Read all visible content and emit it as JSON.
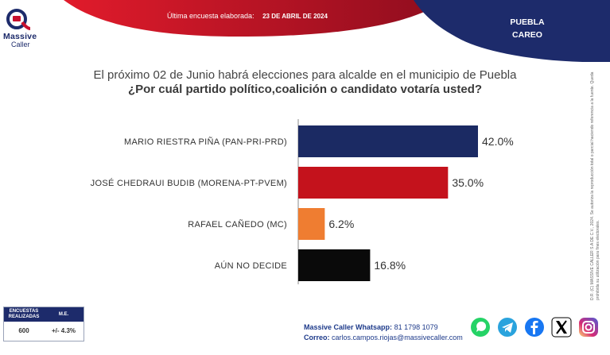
{
  "header": {
    "brand": "Massive",
    "brand_sub": "Caller",
    "survey_label": "Última encuesta elaborada:",
    "survey_date": "23 DE ABRIL DE 2024",
    "region_line1": "PUEBLA",
    "region_line2": "CAREO"
  },
  "question": {
    "intro": "El próximo 02 de Junio habrá elecciones para alcalde en el municipio de Puebla",
    "main": "¿Por cuál partido político,coalición o candidato votaría usted?"
  },
  "chart_data": {
    "type": "bar",
    "orientation": "horizontal",
    "categories": [
      "MARIO RIESTRA PIÑA (PAN-PRI-PRD)",
      "JOSÉ CHEDRAUI BUDIB (MORENA-PT-PVEM)",
      "RAFAEL CAÑEDO (MC)",
      "AÚN NO DECIDE"
    ],
    "values": [
      42.0,
      35.0,
      6.2,
      16.8
    ],
    "value_labels": [
      "42.0%",
      "35.0%",
      "6.2%",
      "16.8%"
    ],
    "colors": [
      "#1b2a63",
      "#c4121c",
      "#ef7d31",
      "#0a0a0a"
    ],
    "title": "",
    "xlabel": "",
    "ylabel": "",
    "xlim": [
      0,
      42
    ],
    "grid": false
  },
  "methodology": {
    "col1_header": "ENCUESTAS REALIZADAS",
    "col2_header": "M.E.",
    "col1_value": "600",
    "col2_value": "+/- 4.3%"
  },
  "contact": {
    "whatsapp_label": "Massive Caller Whatsapp:",
    "whatsapp_number": "81 1798 1079",
    "email_label": "Correo:",
    "email": "carlos.campos.riojas@massivecaller.com"
  },
  "legal": "D.R. (C) MASSIVE CALLER S.A DE C.V., 2024. Se autoriza la reproducción total o parcial haciendo referencia a la fuente. Queda prohibida su utilización para fines electorales.",
  "colors": {
    "navy": "#1d2b6b",
    "red": "#c4121c",
    "banner_red": "#c8102e"
  },
  "social_icons": [
    "whatsapp-icon",
    "telegram-icon",
    "facebook-icon",
    "x-icon",
    "instagram-icon"
  ]
}
